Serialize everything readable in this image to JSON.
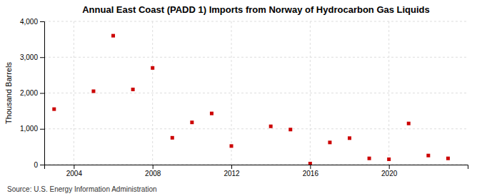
{
  "chart_data": {
    "type": "scatter",
    "title": "Annual East Coast (PADD 1) Imports from Norway of Hydrocarbon Gas Liquids",
    "ylabel": "Thousand Barrels",
    "x": [
      2003,
      2005,
      2006,
      2007,
      2008,
      2009,
      2010,
      2011,
      2012,
      2014,
      2015,
      2016,
      2017,
      2018,
      2019,
      2020,
      2021,
      2022,
      2023
    ],
    "values": [
      1550,
      2050,
      3600,
      2100,
      2700,
      750,
      1180,
      1430,
      520,
      1070,
      980,
      30,
      620,
      740,
      175,
      150,
      1150,
      255,
      175
    ],
    "color": "#cc0000",
    "marker": "square",
    "xlim": [
      2002.5,
      2024
    ],
    "ylim": [
      0,
      4000
    ],
    "xticks": [
      2004,
      2008,
      2012,
      2016,
      2020
    ],
    "yticks": [
      0,
      {
        "value": 1000,
        "label": "1,000"
      },
      {
        "value": 2000,
        "label": "2,000"
      },
      {
        "value": 3000,
        "label": "3,000"
      },
      {
        "value": 4000,
        "label": "4,000"
      }
    ],
    "grid": true,
    "annotations": [
      "Source: U.S. Energy Information Administration"
    ]
  }
}
